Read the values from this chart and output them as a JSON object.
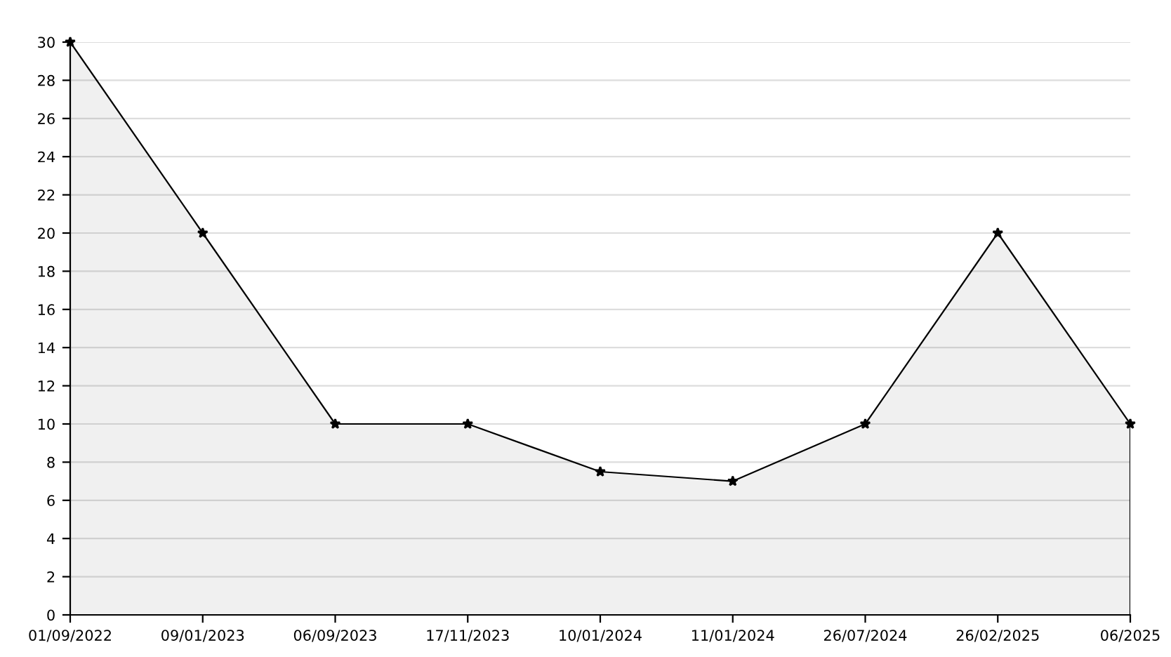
{
  "chart_data": {
    "type": "area",
    "categories": [
      "01/09/2022",
      "09/01/2023",
      "06/09/2023",
      "17/11/2023",
      "10/01/2024",
      "11/01/2024",
      "26/07/2024",
      "26/02/2025",
      "06/2025"
    ],
    "series": [
      {
        "color": "#000000",
        "values": [
          30,
          20,
          10,
          10,
          7.5,
          7,
          10,
          20,
          10
        ]
      }
    ],
    "ylim": [
      0,
      30
    ],
    "yticks": [
      0,
      2,
      4,
      6,
      8,
      10,
      12,
      14,
      16,
      18,
      20,
      22,
      24,
      26,
      28,
      30
    ],
    "grid": "y",
    "marker": "star",
    "line_style": "solid"
  }
}
